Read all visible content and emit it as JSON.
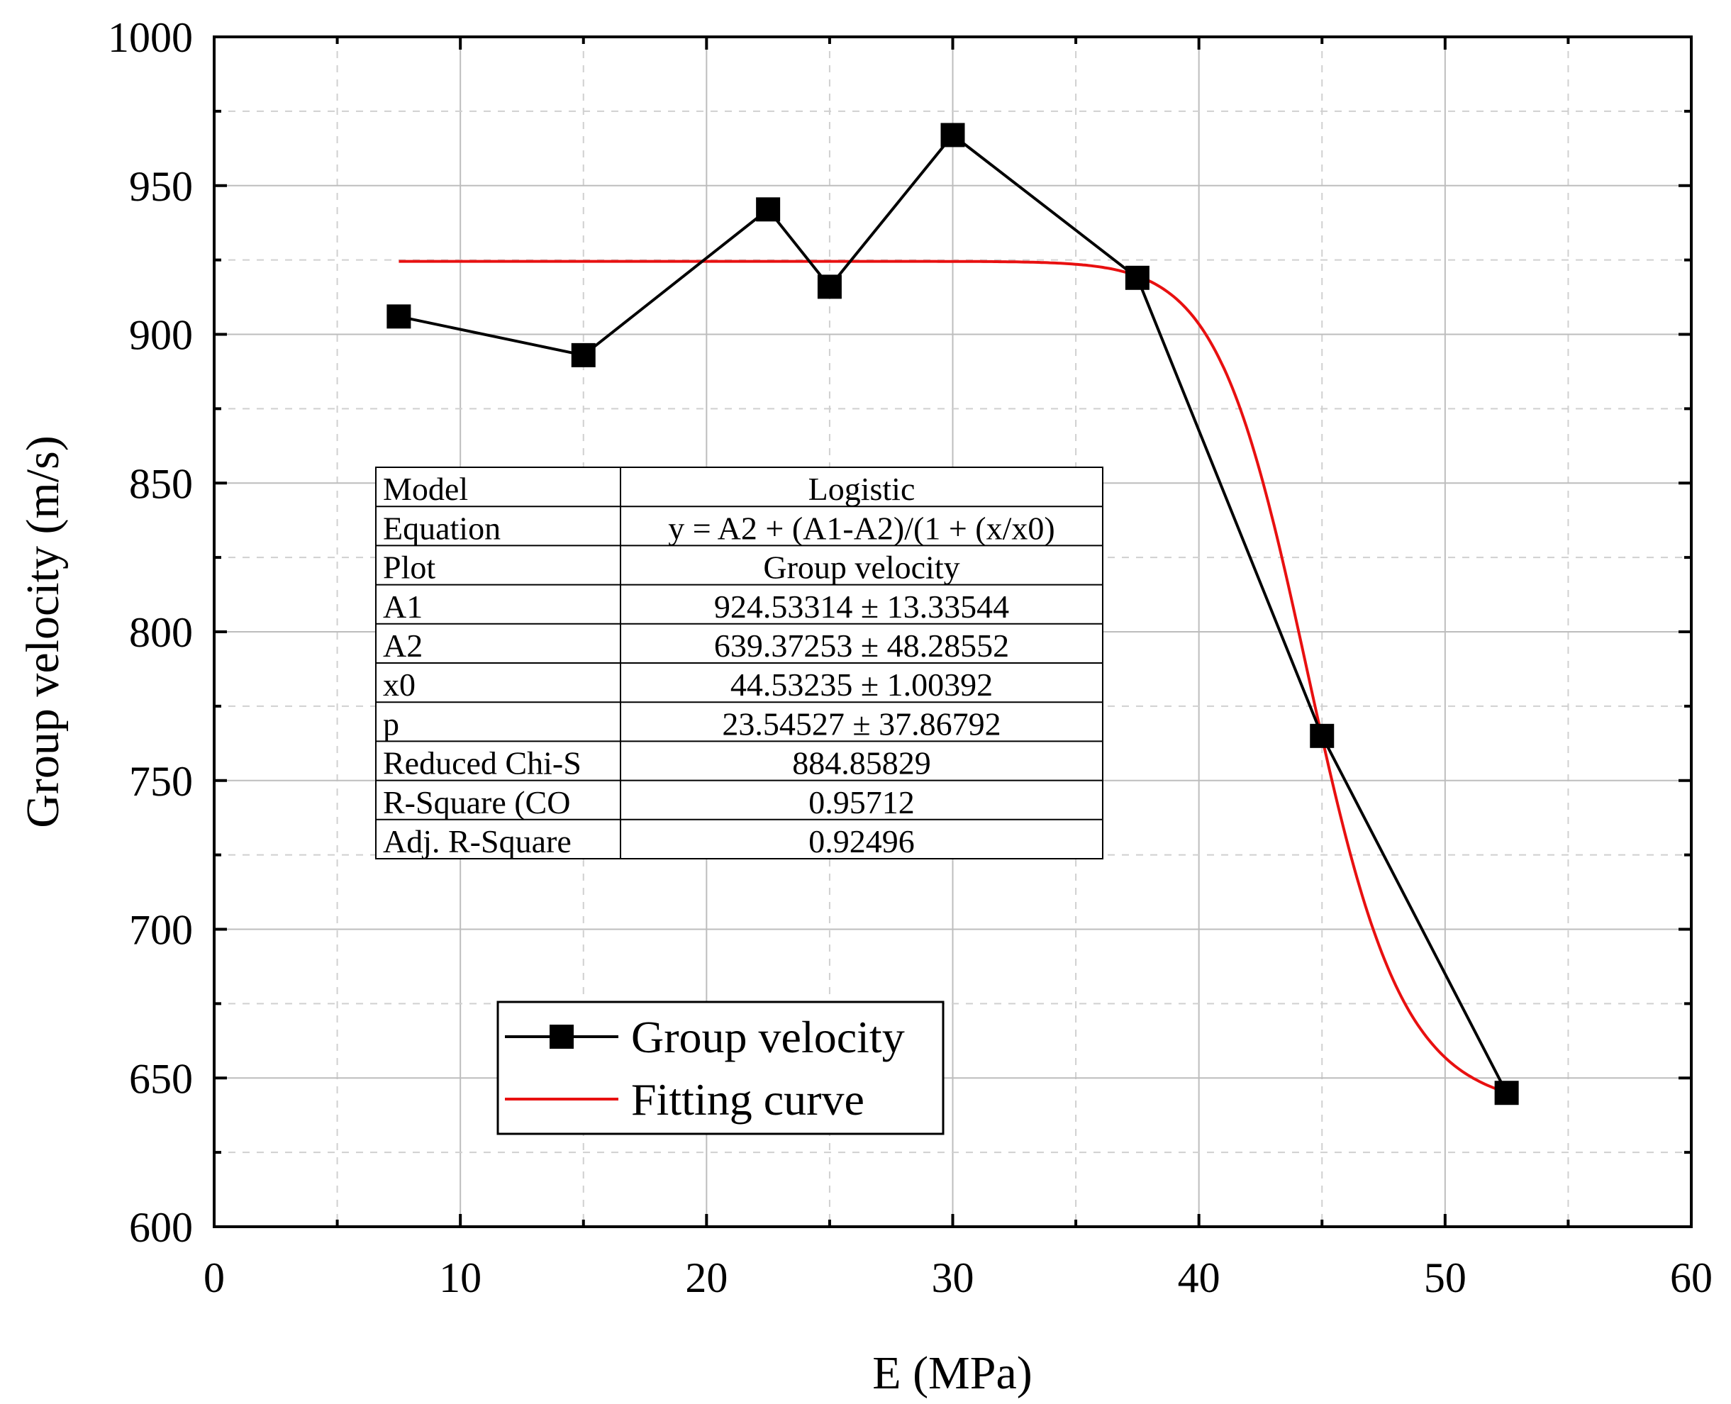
{
  "chart_data": {
    "type": "line",
    "xlabel": "E (MPa)",
    "ylabel": "Group velocity (m/s)",
    "xlim": [
      0,
      60
    ],
    "ylim": [
      600,
      1000
    ],
    "x_ticks": [
      0,
      10,
      20,
      30,
      40,
      50,
      60
    ],
    "y_ticks": [
      600,
      650,
      700,
      750,
      800,
      850,
      900,
      950,
      1000
    ],
    "grid": true,
    "legend_position": "bottom-left",
    "series": [
      {
        "name": "Group velocity",
        "color": "#000000",
        "marker": "square",
        "x": [
          7.5,
          15,
          22.5,
          25,
          30,
          37.5,
          45,
          52.5
        ],
        "y": [
          906,
          893,
          942,
          916,
          967,
          919,
          765,
          645
        ]
      },
      {
        "name": "Fitting curve",
        "color": "#e81010",
        "marker": "none",
        "model": "logistic",
        "params": {
          "A1": 924.53314,
          "A2": 639.37253,
          "x0": 44.53235,
          "p": 23.54527
        },
        "x_range": [
          7.5,
          52.5
        ]
      }
    ],
    "fit_table": [
      [
        "Model",
        "Logistic"
      ],
      [
        "Equation",
        "y = A2 + (A1-A2)/(1 + (x/x0)"
      ],
      [
        "Plot",
        "Group velocity"
      ],
      [
        "A1",
        "924.53314 ± 13.33544"
      ],
      [
        "A2",
        "639.37253 ± 48.28552"
      ],
      [
        "x0",
        "44.53235 ± 1.00392"
      ],
      [
        "p",
        "23.54527 ± 37.86792"
      ],
      [
        "Reduced Chi-S",
        "884.85829"
      ],
      [
        "R-Square (CO",
        "0.95712"
      ],
      [
        "Adj. R-Square",
        "0.92496"
      ]
    ]
  }
}
